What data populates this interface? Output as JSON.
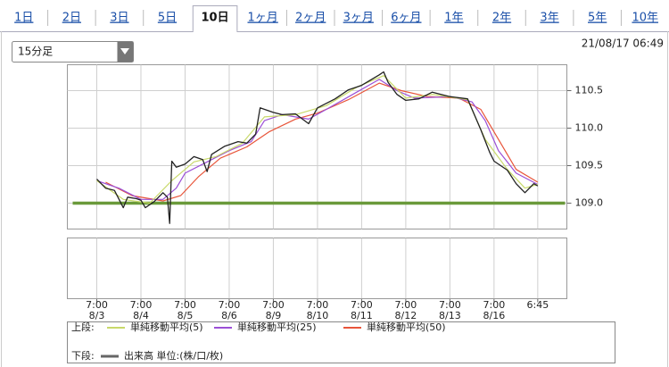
{
  "tabs": [
    "1日",
    "2日",
    "3日",
    "5日",
    "10日",
    "1ヶ月",
    "2ヶ月",
    "3ヶ月",
    "6ヶ月",
    "1年",
    "2年",
    "3年",
    "5年",
    "10年"
  ],
  "selected_tab": 4,
  "interval_select": "15分足",
  "timestamp": "21/08/17 06:49",
  "chart_data": {
    "type": "line",
    "xlim": [
      -0.667,
      10.65
    ],
    "ylim": [
      108.655,
      110.845
    ],
    "xticks": [
      {
        "value": 0,
        "label": "7:00"
      },
      {
        "value": 1,
        "label": "7:00"
      },
      {
        "value": 2,
        "label": "7:00"
      },
      {
        "value": 3,
        "label": "7:00"
      },
      {
        "value": 4,
        "label": "7:00"
      },
      {
        "value": 5,
        "label": "7:00"
      },
      {
        "value": 6,
        "label": "7:00"
      },
      {
        "value": 7,
        "label": "7:00"
      },
      {
        "value": 8,
        "label": "7:00"
      },
      {
        "value": 9,
        "label": "7:00"
      },
      {
        "value": 9.99,
        "label": "6:45"
      }
    ],
    "x_dates": [
      "8/3",
      "8/4",
      "8/5",
      "8/6",
      "8/9",
      "8/10",
      "8/11",
      "8/12",
      "8/13",
      "8/16",
      null
    ],
    "yticks": [
      {
        "value": 109,
        "label": "109.0"
      },
      109.5,
      {
        "value": 110,
        "label": "110.0"
      },
      110.5
    ],
    "grid": true,
    "reference_line": {
      "value": 109.0,
      "color": "#6a9a3a"
    },
    "upper_label": "上段:",
    "lower_label": "下段:",
    "series": [
      {
        "color": "#222222",
        "x": [
          0,
          0.2,
          0.4,
          0.6,
          0.7,
          0.9,
          1.0,
          1.1,
          1.3,
          1.5,
          1.6,
          1.65,
          1.7,
          1.8,
          2.0,
          2.2,
          2.4,
          2.5,
          2.6,
          2.9,
          3.2,
          3.4,
          3.6,
          3.7,
          4.0,
          4.2,
          4.5,
          4.8,
          5.0,
          5.4,
          5.7,
          6.0,
          6.4,
          6.5,
          6.6,
          6.8,
          7.0,
          7.3,
          7.6,
          8.0,
          8.4,
          8.7,
          8.9,
          9.0,
          9.3,
          9.5,
          9.7,
          9.9,
          9.99
        ],
        "values": [
          109.32,
          109.2,
          109.17,
          108.94,
          109.08,
          109.06,
          109.04,
          108.94,
          109.02,
          109.14,
          109.08,
          108.73,
          109.56,
          109.48,
          109.52,
          109.62,
          109.58,
          109.42,
          109.65,
          109.76,
          109.82,
          109.8,
          109.92,
          110.27,
          110.21,
          110.18,
          110.19,
          110.06,
          110.27,
          110.39,
          110.51,
          110.57,
          110.71,
          110.75,
          110.61,
          110.45,
          110.37,
          110.39,
          110.48,
          110.42,
          110.39,
          109.98,
          109.68,
          109.56,
          109.44,
          109.26,
          109.14,
          109.26,
          109.23
        ]
      },
      {
        "name": "単純移動平均(5)",
        "color": "#c8d96a",
        "x": [
          0,
          0.6,
          1.2,
          1.7,
          2.2,
          2.7,
          3.3,
          3.8,
          4.5,
          5.2,
          5.9,
          6.5,
          7.0,
          7.6,
          8.4,
          8.8,
          9.3,
          9.7,
          9.99
        ],
        "values": [
          109.3,
          109.05,
          109.0,
          109.3,
          109.55,
          109.62,
          109.8,
          110.15,
          110.18,
          110.3,
          110.55,
          110.7,
          110.4,
          110.45,
          110.38,
          109.85,
          109.45,
          109.2,
          109.25
        ]
      },
      {
        "name": "単純移動平均(25)",
        "color": "#9b4fd6",
        "x": [
          0,
          0.5,
          1,
          1.5,
          1.8,
          2,
          2.5,
          3,
          3.5,
          3.8,
          4.2,
          4.8,
          5.2,
          5.8,
          6.4,
          6.8,
          7.2,
          8,
          8.5,
          8.8,
          9.1,
          9.5,
          9.99
        ],
        "values": [
          109.3,
          109.2,
          109.05,
          109.05,
          109.2,
          109.4,
          109.55,
          109.7,
          109.82,
          110.1,
          110.18,
          110.12,
          110.25,
          110.45,
          110.65,
          110.5,
          110.4,
          110.42,
          110.35,
          110.1,
          109.7,
          109.4,
          109.25
        ]
      },
      {
        "name": "単純移動平均(50)",
        "color": "#e8553a",
        "x": [
          0.2,
          0.8,
          1.5,
          1.9,
          2.3,
          2.8,
          3.4,
          3.9,
          4.5,
          5,
          5.7,
          6.4,
          6.9,
          7.5,
          8.2,
          8.7,
          9.1,
          9.5,
          9.99
        ],
        "values": [
          109.28,
          109.1,
          109.03,
          109.1,
          109.35,
          109.6,
          109.75,
          109.95,
          110.12,
          110.2,
          110.38,
          110.6,
          110.5,
          110.42,
          110.4,
          110.25,
          109.85,
          109.45,
          109.28
        ]
      }
    ],
    "volume_legend": {
      "name": "出来高 単位:(株/口/枚)",
      "color": "#666666"
    }
  }
}
